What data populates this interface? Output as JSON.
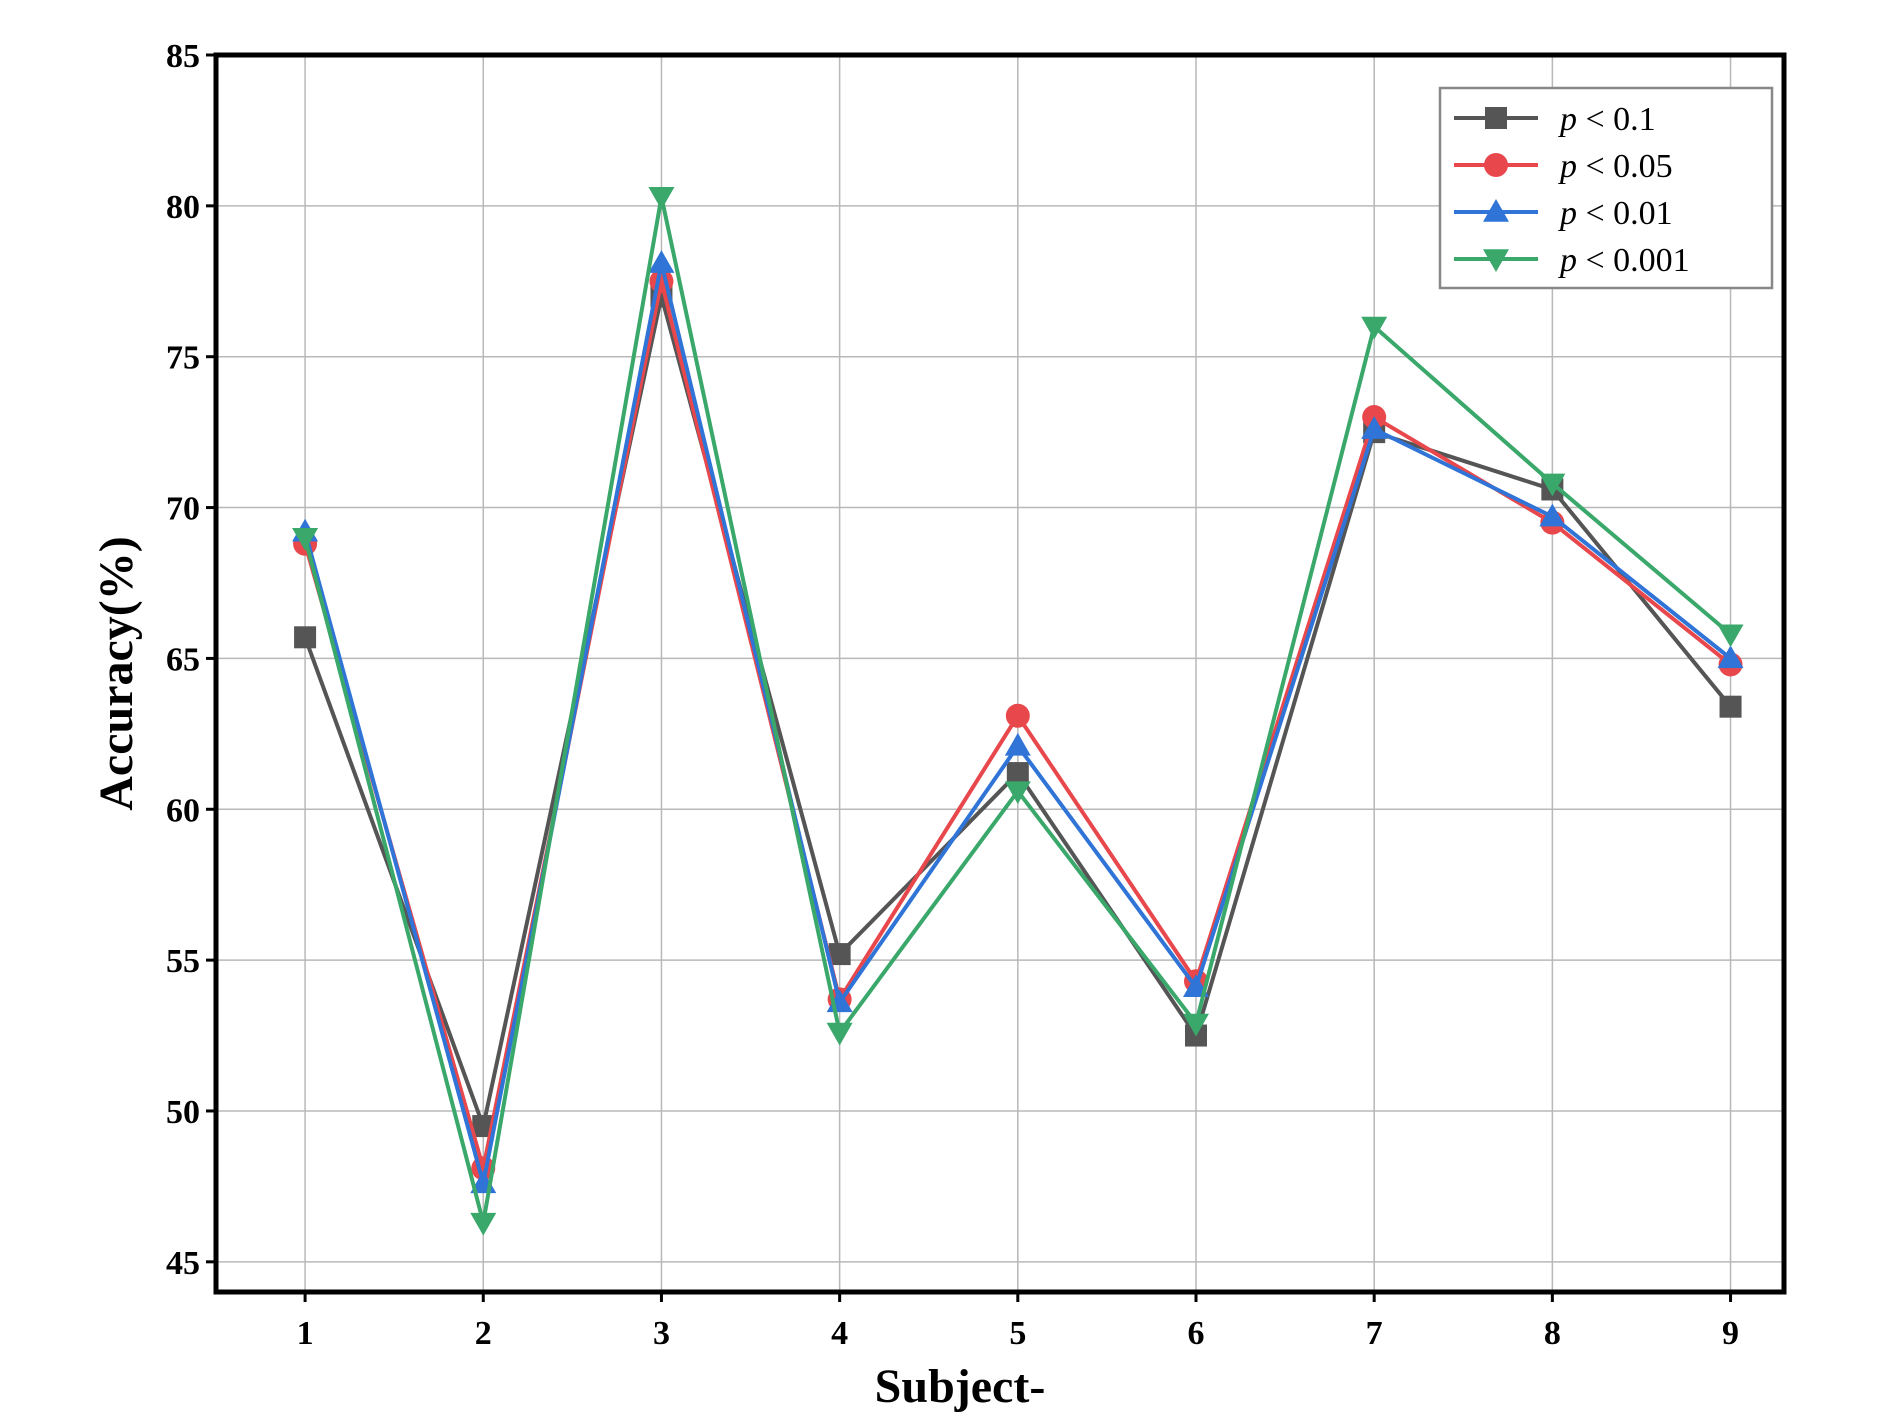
{
  "chart_data": {
    "type": "line",
    "title": "",
    "xlabel": "Subject-",
    "ylabel": "Accuracy(%)",
    "x": [
      1,
      2,
      3,
      4,
      5,
      6,
      7,
      8,
      9
    ],
    "xlim": [
      0.5,
      9.3
    ],
    "ylim": [
      44,
      85
    ],
    "yticks": [
      45,
      50,
      55,
      60,
      65,
      70,
      75,
      80,
      85
    ],
    "grid": true,
    "legend_position": "top-right",
    "series": [
      {
        "name_var": "p",
        "name_rest": " < 0.1",
        "color": "#555555",
        "marker": "square",
        "values": [
          65.7,
          49.5,
          77.0,
          55.2,
          61.2,
          52.5,
          72.5,
          70.6,
          63.4
        ]
      },
      {
        "name_var": "p",
        "name_rest": " < 0.05",
        "color": "#e8474c",
        "marker": "circle",
        "values": [
          68.8,
          48.1,
          77.5,
          53.7,
          63.1,
          54.3,
          73.0,
          69.5,
          64.8
        ]
      },
      {
        "name_var": "p",
        "name_rest": " < 0.01",
        "color": "#2f74d6",
        "marker": "triangle-up",
        "values": [
          69.2,
          47.6,
          78.1,
          53.6,
          62.1,
          54.1,
          72.6,
          69.7,
          65.0
        ]
      },
      {
        "name_var": "p",
        "name_rest": " < 0.001",
        "color": "#3aa86a",
        "marker": "triangle-down",
        "values": [
          69.0,
          46.3,
          80.3,
          52.6,
          60.6,
          52.9,
          76.0,
          70.8,
          65.8
        ]
      }
    ]
  }
}
